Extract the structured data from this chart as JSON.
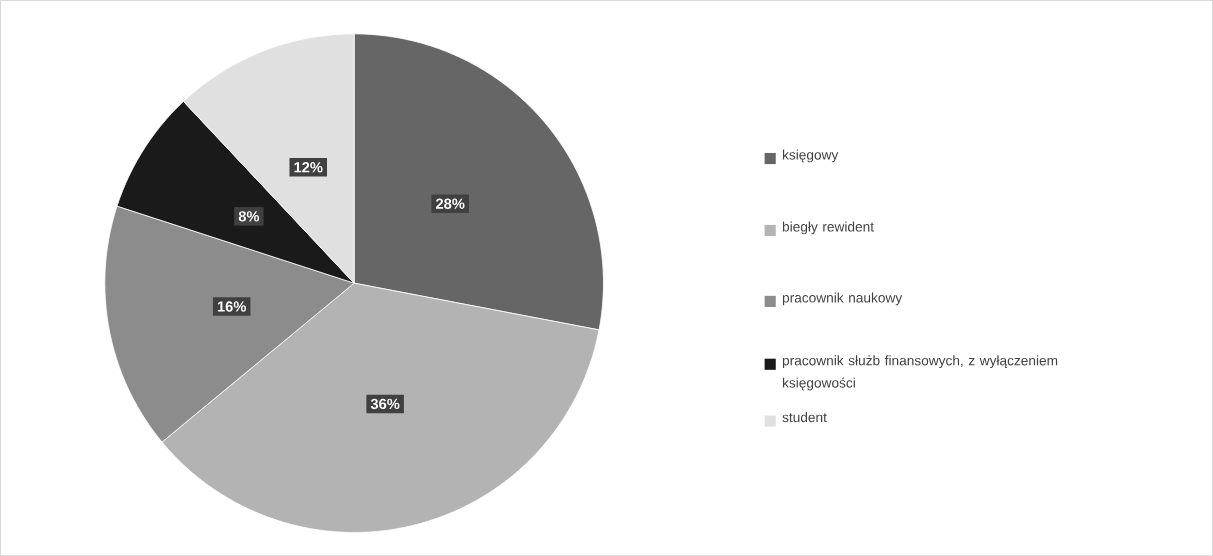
{
  "chart_data": {
    "type": "pie",
    "categories": [
      "księgowy",
      "biegły rewident",
      "pracownik naukowy",
      "pracownik służb finansowych, z wyłączeniem księgowości",
      "student"
    ],
    "values": [
      28,
      36,
      16,
      8,
      12
    ],
    "colors": [
      "#666666",
      "#b3b3b3",
      "#8c8c8c",
      "#1a1a1a",
      "#e0e0e0"
    ],
    "value_labels": [
      "28%",
      "36%",
      "16%",
      "8%",
      "12%"
    ],
    "legend": "right"
  }
}
